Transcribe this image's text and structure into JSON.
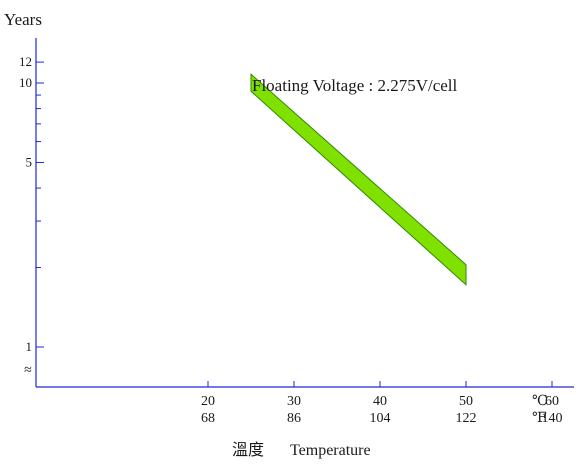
{
  "chart_data": {
    "type": "area",
    "title": "",
    "ylabel": "Years",
    "xlabel_cn": "溫度",
    "xlabel_en": "Temperature",
    "annotation": "Floating Voltage : 2.275V/cell",
    "y_scale": "log",
    "y_ticks_labeled": [
      "12",
      "10",
      "5",
      "1"
    ],
    "y_ticks_values": [
      12,
      10,
      5,
      1
    ],
    "y_minor_ticks": [
      9,
      8,
      7,
      6,
      4,
      3,
      2
    ],
    "y_break_symbol": "≈",
    "x_ticks_c": [
      "20",
      "30",
      "40",
      "50",
      "60"
    ],
    "x_ticks_f": [
      "68",
      "86",
      "104",
      "122",
      "140"
    ],
    "x_ticks_values": [
      20,
      30,
      40,
      50,
      60
    ],
    "x_unit_c": "℃",
    "x_unit_f": "℉",
    "xlim": [
      0,
      68
    ],
    "ylim": [
      0.78,
      14
    ],
    "band": {
      "x": [
        25,
        50
      ],
      "upper": [
        10.8,
        2.05
      ],
      "lower": [
        9.3,
        1.72
      ],
      "color": "#80e000",
      "edge_color": "#2f8a00"
    },
    "axis_color": "#1c2ad6"
  }
}
